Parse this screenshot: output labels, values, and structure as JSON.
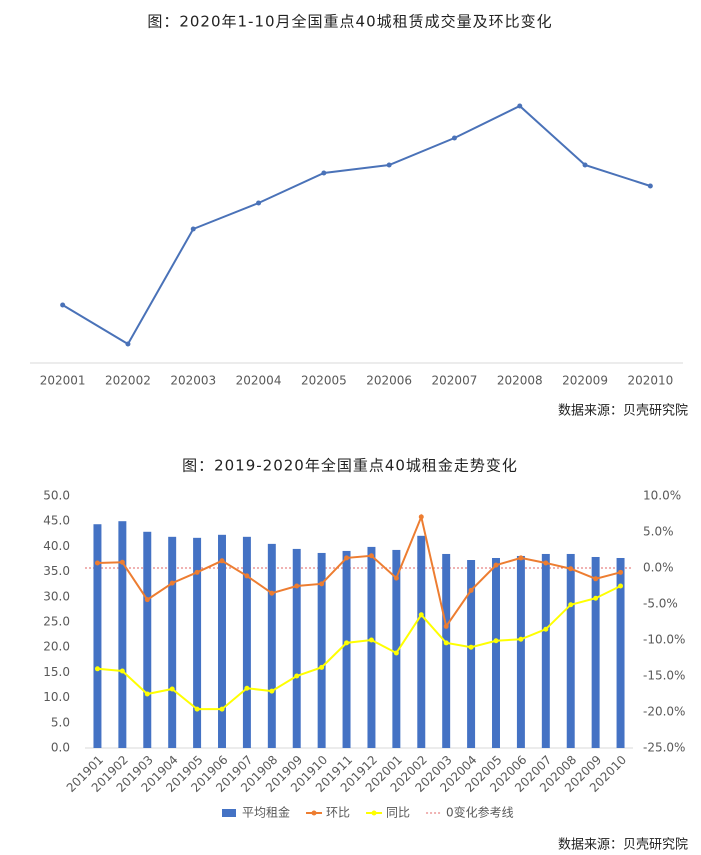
{
  "chart_data": [
    {
      "type": "line",
      "title": "图：2020年1-10月全国重点40城租赁成交量及环比变化",
      "source": "数据来源：贝壳研究院",
      "categories": [
        "202001",
        "202002",
        "202003",
        "202004",
        "202005",
        "202006",
        "202007",
        "202008",
        "202009",
        "202010"
      ],
      "series": [
        {
          "name": "成交量",
          "color": "#4a72b8",
          "values": [
            58,
            19,
            134,
            160,
            190,
            198,
            225,
            257,
            198,
            177
          ]
        }
      ],
      "ylim": [
        0,
        300
      ]
    },
    {
      "type": "bar",
      "title": "图：2019-2020年全国重点40城租金走势变化",
      "source": "数据来源：贝壳研究院",
      "categories": [
        "201901",
        "201902",
        "201903",
        "201904",
        "201905",
        "201906",
        "201907",
        "201908",
        "201909",
        "201910",
        "201911",
        "201912",
        "202001",
        "202002",
        "202003",
        "202004",
        "202005",
        "202006",
        "202007",
        "202008",
        "202009",
        "202010"
      ],
      "series": [
        {
          "name": "平均租金",
          "color": "#4472c4",
          "type": "bar",
          "values": [
            44.4,
            45.0,
            42.9,
            41.9,
            41.7,
            42.3,
            41.9,
            40.5,
            39.5,
            38.7,
            39.1,
            39.9,
            39.3,
            42.1,
            38.5,
            37.3,
            37.7,
            38.1,
            38.5,
            38.5,
            37.9,
            37.7
          ]
        },
        {
          "name": "环比",
          "color": "#ed7d31",
          "type": "line",
          "axis": "y2",
          "values": [
            0.7,
            0.8,
            -4.4,
            -2.1,
            -0.6,
            1.0,
            -1.1,
            -3.5,
            -2.5,
            -2.2,
            1.4,
            1.7,
            -1.4,
            7.1,
            -8.1,
            -3.1,
            0.4,
            1.4,
            0.7,
            -0.1,
            -1.5,
            -0.6
          ]
        },
        {
          "name": "同比",
          "color": "#ffff00",
          "type": "line",
          "axis": "y2",
          "values": [
            -14.0,
            -14.3,
            -17.5,
            -16.8,
            -19.6,
            -19.6,
            -16.7,
            -17.1,
            -15.0,
            -13.8,
            -10.4,
            -10.0,
            -11.8,
            -6.5,
            -10.4,
            -11.0,
            -10.1,
            -9.9,
            -8.5,
            -5.1,
            -4.2,
            -2.5
          ]
        }
      ],
      "reference_line": {
        "name": "0变化参考线",
        "value": 0,
        "axis": "y2",
        "color": "#e06666"
      },
      "ylim": [
        0,
        50
      ],
      "yticks": [
        {
          "value": 0,
          "label": "0.0"
        },
        {
          "value": 5,
          "label": "5.0"
        },
        {
          "value": 10,
          "label": "10.0"
        },
        {
          "value": 15,
          "label": "15.0"
        },
        {
          "value": 20,
          "label": "20.0"
        },
        {
          "value": 25,
          "label": "25.0"
        },
        {
          "value": 30,
          "label": "30.0"
        },
        {
          "value": 35,
          "label": "35.0"
        },
        {
          "value": 40,
          "label": "40.0"
        },
        {
          "value": 45,
          "label": "45.0"
        },
        {
          "value": 50,
          "label": "50.0"
        }
      ],
      "y2lim": [
        -25,
        10
      ],
      "y2ticks": [
        {
          "value": 10,
          "label": "10.0%"
        },
        {
          "value": 5,
          "label": "5.0%"
        },
        {
          "value": 0,
          "label": "0.0%"
        },
        {
          "value": -5,
          "label": "-5.0%"
        },
        {
          "value": -10,
          "label": "-10.0%"
        },
        {
          "value": -15,
          "label": "-15.0%"
        },
        {
          "value": -20,
          "label": "-20.0%"
        },
        {
          "value": -25,
          "label": "-25.0%"
        }
      ]
    }
  ]
}
